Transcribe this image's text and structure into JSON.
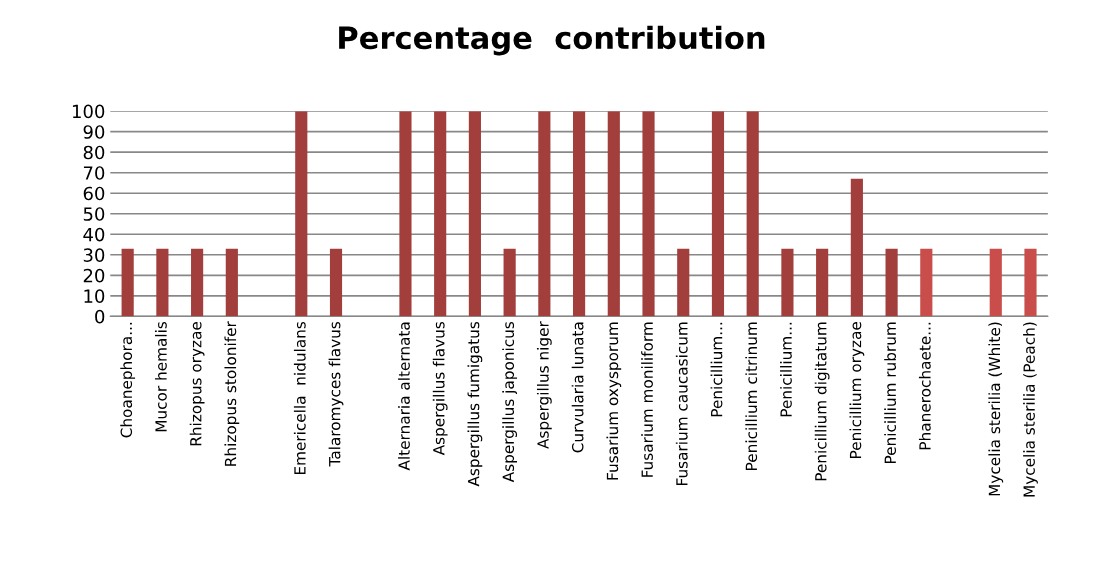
{
  "chart_data": {
    "type": "bar",
    "title": "Percentage  contribution",
    "categories": [
      "Choanephora...",
      "Mucor hemalis",
      "Rhizopus oryzae",
      "Rhizopus stolonifer",
      null,
      "Emericella  nidulans",
      "Talaromyces flavus",
      null,
      "Alternaria alternata",
      "Aspergillus flavus",
      "Aspergillus fumigatus",
      "Aspergillus japonicus",
      "Aspergillus niger",
      "Curvularia lunata",
      "Fusarium oxysporum",
      "Fusarium moniliform",
      "Fusarium caucasicum",
      "Penicillium...",
      "Penicillium citrinum",
      "Penicillium...",
      "Penicillium digitatum",
      "Penicillium oryzae",
      "Penicillium rubrum",
      "Phanerochaete...",
      null,
      "Mycelia sterilia (White)",
      "Mycelia sterilia (Peach)"
    ],
    "values": [
      33,
      33,
      33,
      33,
      null,
      100,
      33,
      null,
      100,
      100,
      100,
      33,
      100,
      100,
      100,
      100,
      33,
      100,
      100,
      33,
      33,
      67,
      33,
      33,
      null,
      33,
      33
    ],
    "colors": [
      "#a23e3b",
      "#a23e3b",
      "#a23e3b",
      "#a23e3b",
      "#a23e3b",
      "#a23e3b",
      "#a23e3b",
      "#a23e3b",
      "#a23e3b",
      "#a23e3b",
      "#a23e3b",
      "#a23e3b",
      "#a23e3b",
      "#a23e3b",
      "#a23e3b",
      "#a23e3b",
      "#a23e3b",
      "#a23e3b",
      "#a23e3b",
      "#a23e3b",
      "#a23e3b",
      "#a23e3b",
      "#a23e3b",
      "#c94d4a",
      "#c94d4a",
      "#c94d4a",
      "#c94d4a"
    ],
    "ylim": [
      0,
      100
    ],
    "yticks": [
      0,
      10,
      20,
      30,
      40,
      50,
      60,
      70,
      80,
      90,
      100
    ],
    "grid": "y"
  }
}
